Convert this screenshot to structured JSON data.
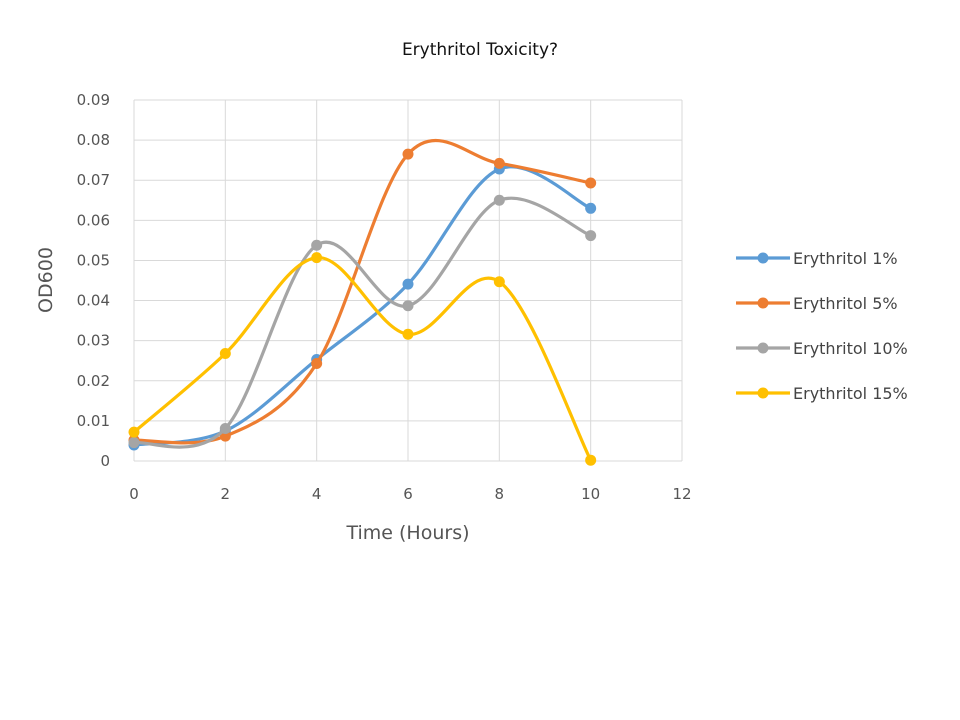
{
  "chart_data": {
    "type": "line",
    "smooth": true,
    "title": "Erythritol Toxicity?",
    "xlabel": "Time (Hours)",
    "ylabel": "OD600",
    "xlim": [
      0,
      12
    ],
    "ylim": [
      0,
      0.09
    ],
    "x_ticks": [
      "0",
      "2",
      "4",
      "6",
      "8",
      "10",
      "12"
    ],
    "y_ticks": [
      "0",
      "0.01",
      "0.02",
      "0.03",
      "0.04",
      "0.05",
      "0.06",
      "0.07",
      "0.08",
      "0.09"
    ],
    "grid": true,
    "legend_position": "right",
    "x": [
      0,
      2,
      4,
      6,
      8,
      10
    ],
    "series": [
      {
        "name": "Erythritol 1%",
        "color": "#5b9bd5",
        "values": [
          0.004,
          0.0075,
          0.0253,
          0.0441,
          0.0728,
          0.063
        ]
      },
      {
        "name": "Erythritol 5%",
        "color": "#ed7d31",
        "values": [
          0.0052,
          0.0062,
          0.0243,
          0.0765,
          0.0742,
          0.0693
        ]
      },
      {
        "name": "Erythritol 10%",
        "color": "#a5a5a5",
        "values": [
          0.0046,
          0.0081,
          0.0538,
          0.0387,
          0.065,
          0.0562
        ]
      },
      {
        "name": "Erythritol 15%",
        "color": "#ffc000",
        "values": [
          0.0072,
          0.0268,
          0.0507,
          0.0316,
          0.0447,
          0.0002
        ]
      }
    ]
  }
}
